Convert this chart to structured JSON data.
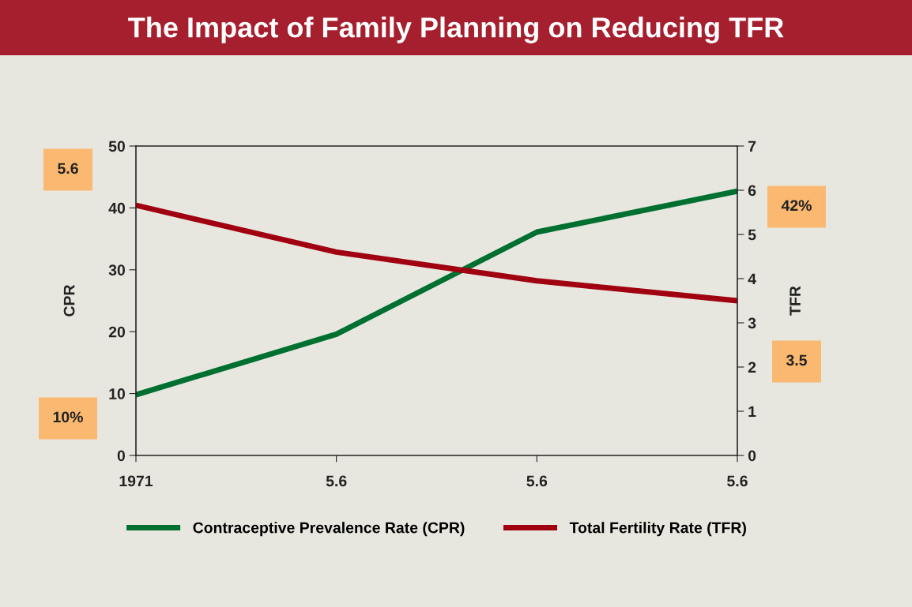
{
  "chart_data": {
    "type": "line",
    "title": "The Impact of Family Planning on Reducing TFR",
    "categories": [
      "1971",
      "5.6",
      "5.6",
      "5.6"
    ],
    "series": [
      {
        "name": "Contraceptive Prevalence Rate (CPR)",
        "color": "#007031",
        "values": [
          9.8,
          19.6,
          36.1,
          42.7
        ]
      },
      {
        "name": "Total Fertility Rate (TFR)",
        "color": "#a0000f",
        "values": [
          5.66,
          4.6,
          3.95,
          3.5
        ],
        "axis": "y2"
      }
    ],
    "ylabel": "CPR",
    "y2label": "TFR",
    "ylim": [
      0,
      50
    ],
    "yticks": [
      0,
      10,
      20,
      30,
      40,
      50
    ],
    "y2lim": [
      0,
      7
    ],
    "y2ticks": [
      0,
      1,
      2,
      3,
      4,
      5,
      6,
      7
    ],
    "annotations": [
      "5.6",
      "10%",
      "42%",
      "3.5"
    ],
    "legend": "bottom",
    "grid": false,
    "marker": "none",
    "line_style": "solid"
  }
}
